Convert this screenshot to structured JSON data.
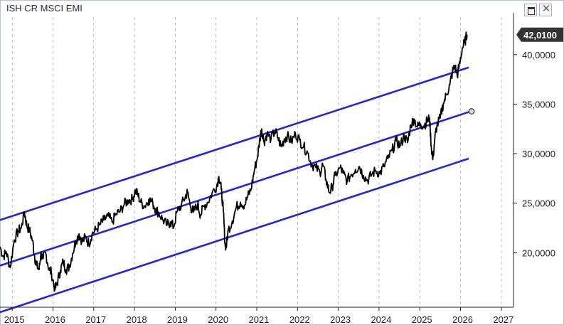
{
  "window": {
    "title": "ISH CR MSCI EMI",
    "maximize_icon": "maximize-icon",
    "close_icon": "close-icon",
    "close_glyph": "✕"
  },
  "chart_data": {
    "type": "line",
    "title": "ISH CR MSCI EMI",
    "xlabel": "",
    "ylabel": "",
    "xlim": [
      2014.7,
      2027.3
    ],
    "ylim": [
      14.5,
      43.5
    ],
    "grid": {
      "vertical": true,
      "horizontal": false
    },
    "y_ticks": [
      20,
      25,
      30,
      35,
      40
    ],
    "y_tick_labels": [
      "20,0000",
      "25,0000",
      "30,0000",
      "35,0000",
      "40,0000"
    ],
    "x_ticks": [
      2015,
      2016,
      2017,
      2018,
      2019,
      2020,
      2021,
      2022,
      2023,
      2024,
      2025,
      2026,
      2027
    ],
    "x_tick_labels": [
      "2015",
      "2016",
      "2017",
      "2018",
      "2019",
      "2020",
      "2021",
      "2022",
      "2023",
      "2024",
      "2025",
      "2026",
      "2027"
    ],
    "last_price_label": "42,0100",
    "last_price": 42.01,
    "colors": {
      "price": "#000000",
      "channel": "#2323e0",
      "badge": "#333333"
    },
    "channel": {
      "x": [
        2014.7,
        2026.2
      ],
      "upper": [
        23.3,
        38.7
      ],
      "middle": [
        18.7,
        34.2
      ],
      "lower": [
        14.0,
        29.5
      ]
    },
    "series": [
      {
        "values": [
          [
            2014.7,
            20.6
          ],
          [
            2014.78,
            19.6
          ],
          [
            2014.85,
            20.1
          ],
          [
            2014.95,
            18.5
          ],
          [
            2015.05,
            21.3
          ],
          [
            2015.15,
            22.2
          ],
          [
            2015.22,
            22.5
          ],
          [
            2015.3,
            24.1
          ],
          [
            2015.36,
            22.7
          ],
          [
            2015.42,
            22.3
          ],
          [
            2015.5,
            21.2
          ],
          [
            2015.55,
            19.6
          ],
          [
            2015.6,
            18.7
          ],
          [
            2015.66,
            18.3
          ],
          [
            2015.7,
            19.9
          ],
          [
            2015.76,
            19.4
          ],
          [
            2015.82,
            20.0
          ],
          [
            2015.9,
            18.4
          ],
          [
            2015.96,
            18.0
          ],
          [
            2016.05,
            16.3
          ],
          [
            2016.1,
            16.9
          ],
          [
            2016.18,
            18.2
          ],
          [
            2016.25,
            19.1
          ],
          [
            2016.32,
            18.3
          ],
          [
            2016.4,
            18.6
          ],
          [
            2016.48,
            19.9
          ],
          [
            2016.56,
            21.2
          ],
          [
            2016.64,
            21.9
          ],
          [
            2016.72,
            21.1
          ],
          [
            2016.8,
            21.6
          ],
          [
            2016.88,
            20.9
          ],
          [
            2016.96,
            21.9
          ],
          [
            2017.05,
            22.3
          ],
          [
            2017.15,
            22.8
          ],
          [
            2017.25,
            23.3
          ],
          [
            2017.35,
            23.7
          ],
          [
            2017.45,
            23.1
          ],
          [
            2017.55,
            23.9
          ],
          [
            2017.65,
            24.2
          ],
          [
            2017.75,
            24.9
          ],
          [
            2017.85,
            25.3
          ],
          [
            2017.95,
            25.4
          ],
          [
            2018.02,
            26.3
          ],
          [
            2018.08,
            25.9
          ],
          [
            2018.15,
            25.1
          ],
          [
            2018.25,
            24.7
          ],
          [
            2018.35,
            25.4
          ],
          [
            2018.45,
            25.0
          ],
          [
            2018.52,
            24.4
          ],
          [
            2018.6,
            24.0
          ],
          [
            2018.7,
            23.3
          ],
          [
            2018.8,
            22.8
          ],
          [
            2018.88,
            23.1
          ],
          [
            2018.96,
            22.6
          ],
          [
            2019.05,
            24.2
          ],
          [
            2019.15,
            24.8
          ],
          [
            2019.25,
            25.7
          ],
          [
            2019.3,
            26.1
          ],
          [
            2019.38,
            24.6
          ],
          [
            2019.45,
            24.1
          ],
          [
            2019.55,
            24.9
          ],
          [
            2019.62,
            23.8
          ],
          [
            2019.7,
            24.7
          ],
          [
            2019.8,
            25.1
          ],
          [
            2019.9,
            26.0
          ],
          [
            2020.02,
            26.8
          ],
          [
            2020.07,
            27.7
          ],
          [
            2020.13,
            26.4
          ],
          [
            2020.18,
            24.2
          ],
          [
            2020.22,
            21.0
          ],
          [
            2020.25,
            20.5
          ],
          [
            2020.3,
            22.3
          ],
          [
            2020.4,
            23.2
          ],
          [
            2020.5,
            24.6
          ],
          [
            2020.6,
            25.1
          ],
          [
            2020.7,
            24.8
          ],
          [
            2020.78,
            25.7
          ],
          [
            2020.86,
            26.4
          ],
          [
            2020.94,
            28.3
          ],
          [
            2021.02,
            29.7
          ],
          [
            2021.08,
            31.6
          ],
          [
            2021.12,
            32.5
          ],
          [
            2021.18,
            31.2
          ],
          [
            2021.25,
            32.0
          ],
          [
            2021.35,
            31.5
          ],
          [
            2021.45,
            32.3
          ],
          [
            2021.52,
            31.6
          ],
          [
            2021.6,
            30.7
          ],
          [
            2021.68,
            31.5
          ],
          [
            2021.75,
            31.8
          ],
          [
            2021.85,
            31.2
          ],
          [
            2021.95,
            32.0
          ],
          [
            2022.05,
            31.4
          ],
          [
            2022.15,
            30.7
          ],
          [
            2022.25,
            30.1
          ],
          [
            2022.35,
            28.9
          ],
          [
            2022.45,
            28.6
          ],
          [
            2022.55,
            28.1
          ],
          [
            2022.62,
            28.9
          ],
          [
            2022.7,
            27.4
          ],
          [
            2022.78,
            26.1
          ],
          [
            2022.85,
            26.6
          ],
          [
            2022.92,
            27.8
          ],
          [
            2023.05,
            28.6
          ],
          [
            2023.12,
            28.0
          ],
          [
            2023.22,
            27.3
          ],
          [
            2023.32,
            27.9
          ],
          [
            2023.42,
            28.4
          ],
          [
            2023.52,
            28.7
          ],
          [
            2023.62,
            27.8
          ],
          [
            2023.72,
            27.3
          ],
          [
            2023.82,
            27.9
          ],
          [
            2023.92,
            28.3
          ],
          [
            2024.02,
            28.0
          ],
          [
            2024.12,
            28.7
          ],
          [
            2024.22,
            29.5
          ],
          [
            2024.32,
            30.3
          ],
          [
            2024.42,
            31.3
          ],
          [
            2024.52,
            30.8
          ],
          [
            2024.62,
            31.8
          ],
          [
            2024.7,
            31.1
          ],
          [
            2024.78,
            32.9
          ],
          [
            2024.86,
            33.5
          ],
          [
            2024.94,
            32.7
          ],
          [
            2025.02,
            33.0
          ],
          [
            2025.1,
            32.8
          ],
          [
            2025.18,
            33.3
          ],
          [
            2025.24,
            33.6
          ],
          [
            2025.28,
            30.8
          ],
          [
            2025.32,
            29.4
          ],
          [
            2025.37,
            31.6
          ],
          [
            2025.42,
            32.8
          ],
          [
            2025.5,
            33.6
          ],
          [
            2025.58,
            35.1
          ],
          [
            2025.66,
            36.0
          ],
          [
            2025.74,
            37.0
          ],
          [
            2025.8,
            38.2
          ],
          [
            2025.86,
            38.9
          ],
          [
            2025.92,
            37.9
          ],
          [
            2025.98,
            39.1
          ],
          [
            2026.04,
            40.6
          ],
          [
            2026.1,
            41.2
          ],
          [
            2026.16,
            42.01
          ]
        ]
      }
    ]
  }
}
